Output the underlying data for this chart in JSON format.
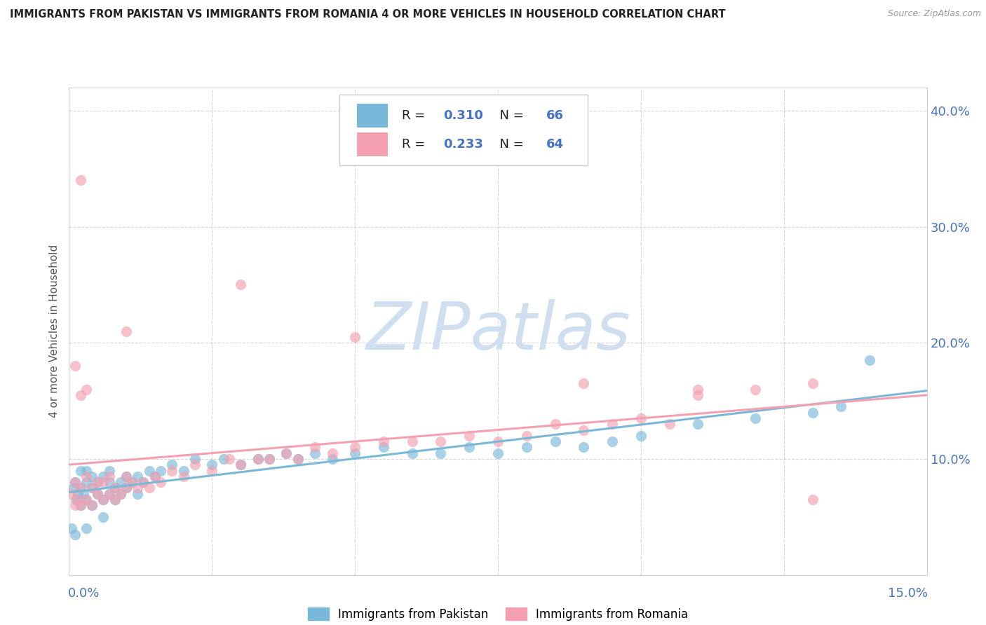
{
  "title": "IMMIGRANTS FROM PAKISTAN VS IMMIGRANTS FROM ROMANIA 4 OR MORE VEHICLES IN HOUSEHOLD CORRELATION CHART",
  "source": "Source: ZipAtlas.com",
  "ylabel": "4 or more Vehicles in Household",
  "y_tick_vals": [
    0.1,
    0.2,
    0.3,
    0.4
  ],
  "y_tick_labels": [
    "10.0%",
    "20.0%",
    "30.0%",
    "40.0%"
  ],
  "xlim": [
    0.0,
    0.15
  ],
  "ylim": [
    0.0,
    0.42
  ],
  "pakistan_color": "#7ab8d9",
  "romania_color": "#f4a0b0",
  "pakistan_R": 0.31,
  "pakistan_N": 66,
  "romania_R": 0.233,
  "romania_N": 64,
  "legend_label_pakistan": "Immigrants from Pakistan",
  "legend_label_romania": "Immigrants from Romania",
  "watermark": "ZIPatlas",
  "tick_color": "#4472C4",
  "title_color": "#222222",
  "source_color": "#999999",
  "grid_color": "#cccccc",
  "pakistan_x": [
    0.0008,
    0.001,
    0.0012,
    0.0015,
    0.002,
    0.002,
    0.002,
    0.0025,
    0.003,
    0.003,
    0.003,
    0.004,
    0.004,
    0.004,
    0.005,
    0.005,
    0.006,
    0.006,
    0.007,
    0.007,
    0.007,
    0.008,
    0.008,
    0.009,
    0.009,
    0.01,
    0.01,
    0.011,
    0.012,
    0.012,
    0.013,
    0.014,
    0.015,
    0.016,
    0.018,
    0.02,
    0.022,
    0.025,
    0.027,
    0.03,
    0.033,
    0.035,
    0.038,
    0.04,
    0.043,
    0.046,
    0.05,
    0.055,
    0.06,
    0.065,
    0.07,
    0.075,
    0.08,
    0.085,
    0.09,
    0.095,
    0.1,
    0.11,
    0.12,
    0.13,
    0.135,
    0.14,
    0.0005,
    0.001,
    0.003,
    0.006
  ],
  "pakistan_y": [
    0.075,
    0.08,
    0.065,
    0.07,
    0.06,
    0.075,
    0.09,
    0.07,
    0.065,
    0.08,
    0.09,
    0.06,
    0.075,
    0.085,
    0.07,
    0.08,
    0.065,
    0.085,
    0.07,
    0.08,
    0.09,
    0.065,
    0.075,
    0.07,
    0.08,
    0.075,
    0.085,
    0.08,
    0.07,
    0.085,
    0.08,
    0.09,
    0.085,
    0.09,
    0.095,
    0.09,
    0.1,
    0.095,
    0.1,
    0.095,
    0.1,
    0.1,
    0.105,
    0.1,
    0.105,
    0.1,
    0.105,
    0.11,
    0.105,
    0.105,
    0.11,
    0.105,
    0.11,
    0.115,
    0.11,
    0.115,
    0.12,
    0.13,
    0.135,
    0.14,
    0.145,
    0.185,
    0.04,
    0.035,
    0.04,
    0.05
  ],
  "romania_x": [
    0.0005,
    0.001,
    0.001,
    0.0015,
    0.002,
    0.002,
    0.003,
    0.003,
    0.004,
    0.004,
    0.005,
    0.005,
    0.006,
    0.006,
    0.007,
    0.007,
    0.008,
    0.008,
    0.009,
    0.01,
    0.01,
    0.011,
    0.012,
    0.013,
    0.014,
    0.015,
    0.016,
    0.018,
    0.02,
    0.022,
    0.025,
    0.028,
    0.03,
    0.033,
    0.035,
    0.038,
    0.04,
    0.043,
    0.046,
    0.05,
    0.055,
    0.06,
    0.065,
    0.07,
    0.075,
    0.08,
    0.085,
    0.09,
    0.095,
    0.1,
    0.105,
    0.11,
    0.12,
    0.13,
    0.001,
    0.002,
    0.003,
    0.01,
    0.03,
    0.05,
    0.09,
    0.11,
    0.13,
    0.002
  ],
  "romania_y": [
    0.07,
    0.06,
    0.08,
    0.065,
    0.06,
    0.075,
    0.065,
    0.085,
    0.06,
    0.075,
    0.07,
    0.08,
    0.065,
    0.08,
    0.07,
    0.085,
    0.065,
    0.075,
    0.07,
    0.075,
    0.085,
    0.08,
    0.075,
    0.08,
    0.075,
    0.085,
    0.08,
    0.09,
    0.085,
    0.095,
    0.09,
    0.1,
    0.095,
    0.1,
    0.1,
    0.105,
    0.1,
    0.11,
    0.105,
    0.11,
    0.115,
    0.115,
    0.115,
    0.12,
    0.115,
    0.12,
    0.13,
    0.125,
    0.13,
    0.135,
    0.13,
    0.155,
    0.16,
    0.165,
    0.18,
    0.155,
    0.16,
    0.21,
    0.25,
    0.205,
    0.165,
    0.16,
    0.065,
    0.34
  ]
}
